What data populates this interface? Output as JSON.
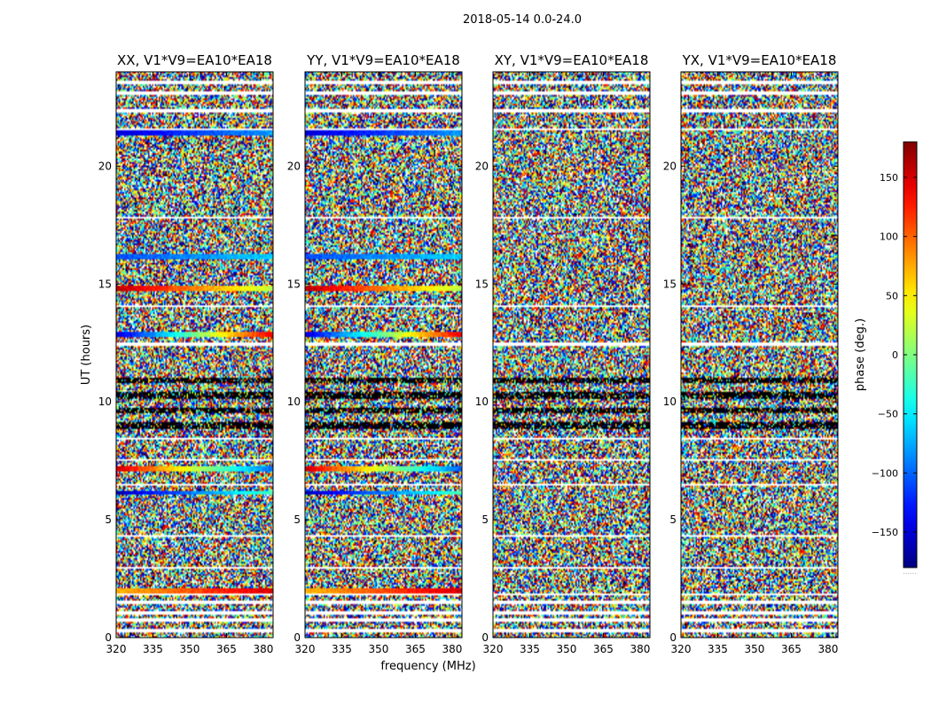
{
  "chart_data": {
    "type": "heatmap",
    "suptitle": "2018-05-14 0.0-24.0",
    "xlabel": "frequency (MHz)",
    "ylabel": "UT (hours)",
    "xlim": [
      320,
      384
    ],
    "ylim": [
      0,
      24
    ],
    "x_ticks": [
      320,
      335,
      350,
      365,
      380
    ],
    "y_ticks": [
      0,
      5,
      10,
      15,
      20
    ],
    "panels": [
      {
        "title": "XX, V1*V9=EA10*EA18",
        "polarization": "XX"
      },
      {
        "title": "YY, V1*V9=EA10*EA18",
        "polarization": "YY"
      },
      {
        "title": "XY, V1*V9=EA10*EA18",
        "polarization": "XY"
      },
      {
        "title": "YX, V1*V9=EA10*EA18",
        "polarization": "YX"
      }
    ],
    "colorbar": {
      "label": "phase (deg.)",
      "range": [
        -180,
        180
      ],
      "ticks": [
        -150,
        -100,
        -50,
        0,
        50,
        100,
        150
      ],
      "colormap": "jet",
      "footer": "......"
    },
    "gap_rows_ut": [
      0.3,
      0.75,
      1.05,
      1.5,
      1.85,
      2.95,
      4.3,
      6.5,
      7.55,
      8.45,
      12.45,
      14.05,
      17.8,
      21.55,
      22.35,
      23.1,
      23.55
    ],
    "coherent_bands_ut": {
      "parallel": [
        {
          "ut": 2.0,
          "phase_start": 70,
          "phase_end": 150
        },
        {
          "ut": 6.15,
          "phase_start": -160,
          "phase_end": -20
        },
        {
          "ut": 7.15,
          "phase_start": 150,
          "phase_end": -100
        },
        {
          "ut": 12.85,
          "phase_start": -150,
          "phase_end": 140
        },
        {
          "ut": 14.8,
          "phase_start": 160,
          "phase_end": 20
        },
        {
          "ut": 16.15,
          "phase_start": -110,
          "phase_end": -60
        },
        {
          "ut": 21.4,
          "phase_start": -150,
          "phase_end": -80
        }
      ]
    }
  }
}
